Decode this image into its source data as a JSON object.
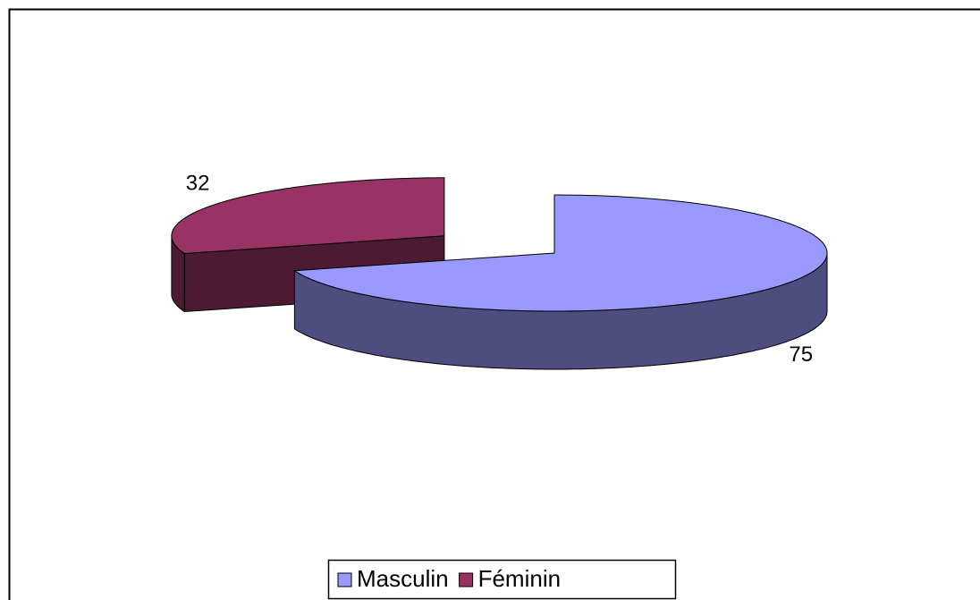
{
  "chart_data": {
    "type": "pie",
    "categories": [
      "Masculin",
      "Féminin"
    ],
    "values": [
      75,
      32
    ],
    "colors": [
      "#9999ff",
      "#993366"
    ],
    "legend": "bottom"
  }
}
